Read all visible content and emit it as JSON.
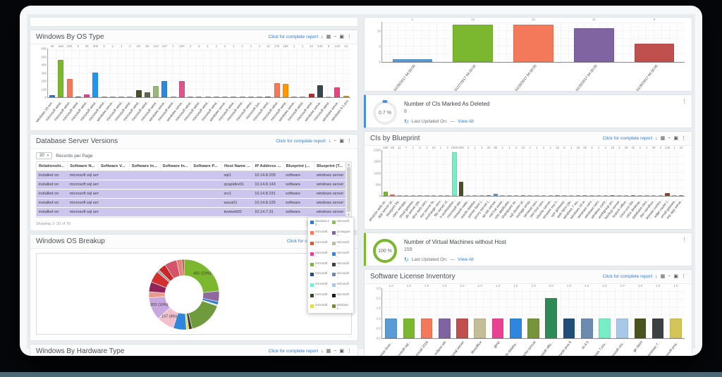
{
  "icons": {
    "download": "↓",
    "print": "▦",
    "minimize": "−",
    "popout": "▣",
    "kebab": "⋮",
    "refresh": "↻",
    "caret": "▾",
    "up": "▲",
    "down": "▼",
    "prev": "‹",
    "next": "›"
  },
  "labels": {
    "report_link": "Click for complete report",
    "records_per_page": "Records per Page",
    "last_updated": "Last Updated On:",
    "dash": "—",
    "view_all": "View All"
  },
  "colors": {
    "accent_link": "#2a7de1",
    "row_highlight": "#ccc5ee",
    "bottom_strip": "#4b6a76"
  },
  "panels": {
    "os_type": {
      "title": "Windows By OS Type"
    },
    "db_versions": {
      "title": "Database Server Versions"
    },
    "os_breakup": {
      "title": "Windows OS Breakup"
    },
    "hardware": {
      "title": "Windows By Hardware Type"
    },
    "blueprint": {
      "title": "CIs by Blueprint"
    },
    "license": {
      "title": "Software License Inventory"
    }
  },
  "widgets": {
    "deleted_cis": {
      "title": "Number of CIs Marked As Deleted",
      "value": "8",
      "gauge": "0.7 %",
      "accent": "#4a90d9"
    },
    "vm_no_host": {
      "title": "Number of Virtual Machines without Host",
      "value": "159",
      "gauge": "100 %",
      "accent": "#7cb82f"
    }
  },
  "table": {
    "records_per_page": "20",
    "headers": [
      "Relationshi...",
      "Software N...",
      "Software V...",
      "Software In...",
      "Software In...",
      "Software P...",
      "Host Name ...",
      "IP Address ...",
      "Blueprint (...",
      "Blueprint (T..."
    ],
    "rows": [
      [
        "installed on",
        "microsoft sql serve...",
        "",
        "",
        "",
        "",
        "sql1",
        "10.14.8.205",
        "software",
        "windows server"
      ],
      [
        "installed on",
        "microsoft sql serve...",
        "",
        "",
        "",
        "",
        "qcapidev01",
        "10.14.8.143",
        "software",
        "windows server"
      ],
      [
        "installed on",
        "microsoft sql serve...",
        "",
        "",
        "",
        "",
        "srv1",
        "10.14.8.231",
        "software",
        "windows server"
      ],
      [
        "installed on",
        "microsoft sql serve...",
        "",
        "",
        "",
        "",
        "wsus01",
        "10.14.8.225",
        "software",
        "windows server"
      ],
      [
        "installed on",
        "microsoft sql serve...",
        "",
        "",
        "",
        "",
        "testweb02",
        "10.14.7.31",
        "software",
        "windows server"
      ]
    ],
    "showing": "Showing 1- 20 of 70",
    "pages": [
      "1",
      "2",
      "3",
      "4"
    ],
    "active_page": "1"
  },
  "legend_overlay": {
    "items": [
      {
        "color": "#2d7dd2",
        "label": "windows 10..."
      },
      {
        "color": "#8bc34a",
        "label": "microsoft ..."
      },
      {
        "color": "#f4795b",
        "label": "microsoft ..."
      },
      {
        "color": "#8064a2",
        "label": "(unsupport..."
      },
      {
        "color": "#e05a2b",
        "label": "microsoft ..."
      },
      {
        "color": "#c4bd97",
        "label": "microsoft ..."
      },
      {
        "color": "#e84393",
        "label": "microsoft ..."
      },
      {
        "color": "#2e86de",
        "label": "microsoft ..."
      },
      {
        "color": "#7cb82f",
        "label": "microsoft ..."
      },
      {
        "color": "#3c4043",
        "label": "microsoft ..."
      },
      {
        "color": "#1f4e79",
        "label": "microsoft ..."
      },
      {
        "color": "#6b8cae",
        "label": "microsoft ..."
      },
      {
        "color": "#76eec6",
        "label": "microsoft ..."
      },
      {
        "color": "#a8c8e8",
        "label": "microsoft ..."
      },
      {
        "color": "#2d4a22",
        "label": "microsoft ..."
      },
      {
        "color": "#1a1a1a",
        "label": "microsoft ..."
      },
      {
        "color": "#e6d94e",
        "label": "microsoft ..."
      },
      {
        "color": "#7a8b2f",
        "label": "windows s..."
      }
    ]
  },
  "chart_data": [
    {
      "type": "bar",
      "title": "Windows By OS Type",
      "ylim": [
        0,
        600
      ],
      "yticks": [
        0,
        100,
        200,
        300,
        400,
        500,
        600
      ],
      "fmt": 0,
      "values": [
        30,
        460,
        230,
        8,
        35,
        305,
        5,
        1,
        1,
        2,
        84,
        60,
        140,
        197,
        1,
        200,
        2,
        2,
        1,
        1,
        2,
        1,
        2,
        1,
        2,
        12,
        175,
        168,
        1,
        1,
        42,
        145,
        8,
        120,
        14
      ],
      "colors": [
        "#2d7dd2",
        "#7cb82f",
        "#f4795b",
        "#c0504d",
        "#e84393",
        "#2196f3",
        "#b0b0b0",
        "#b0b0b0",
        "#b0b0b0",
        "#b0b0b0",
        "#4a4f2a",
        "#5d6b4a",
        "#9ab87a",
        "#2e86de",
        "#b0b0b0",
        "#e0548c",
        "#b0b0b0",
        "#b0b0b0",
        "#b0b0b0",
        "#b0b0b0",
        "#b0b0b0",
        "#b0b0b0",
        "#b0b0b0",
        "#b0b0b0",
        "#b0b0b0",
        "#9b59b6",
        "#f4795b",
        "#ff9800",
        "#b0b0b0",
        "#b0b0b0",
        "#c0282d",
        "#37474f",
        "#e6e24a",
        "#e0487e",
        "#c9a227"
      ],
      "categories": [
        "windows 10 ent...",
        "microsoft wind...",
        "microsoft wind...",
        "microsoft wind...",
        "microsoft wind...",
        "microsoft wind...",
        "microsoft wind...",
        "windows serve...",
        "microsoft wind...",
        "microsoft wind...",
        "microsoft wind...",
        "microsoft wind...",
        "microsoft wind...",
        "windows serve...",
        "microsoft wind...",
        "windows serve...",
        "microsoft wind...",
        "microsoft wind...",
        "microsoft wind...",
        "microsoft wind...",
        "windows serve...",
        "microsoft wind...",
        "microsoft wind...",
        "microsoft wind...",
        "microsoft (un...",
        "microsoft wind...",
        "microsoft wind...",
        "microsoft wind...",
        "windows serve...",
        "microsoft wind...",
        "microsoft wind...",
        "windows serve...",
        "microsoft wind...",
        "windows serve...",
        "windows 8.1 pro"
      ]
    },
    {
      "type": "bar",
      "title": "",
      "ylim": [
        0,
        13
      ],
      "yticks": [
        0,
        5,
        10
      ],
      "fmt": 0,
      "values": [
        1,
        12,
        12,
        11,
        6
      ],
      "colors": [
        "#5b9bd5",
        "#7cb82f",
        "#f4795b",
        "#8064a2",
        "#c0504d"
      ],
      "categories": [
        "01/26/2017 04:30:00",
        "01/27/2017 04:30:00",
        "01/28/2017 04:30:00",
        "01/29/2017 04:30:00",
        "01/30/2017 04:30:00"
      ]
    },
    {
      "type": "bar",
      "title": "CIs by Blueprint",
      "ylim": [
        0,
        2000
      ],
      "yticks": [
        0,
        500,
        1000,
        1500,
        2000
      ],
      "fmt": 0,
      "values": [
        180,
        60,
        11,
        7,
        1,
        5,
        2,
        10,
        1,
        3,
        1900,
        605,
        3,
        1,
        3,
        26,
        80,
        1,
        1,
        3,
        10,
        4,
        1,
        2,
        1,
        32,
        5,
        1,
        40,
        25,
        3,
        1,
        4,
        15,
        3,
        28,
        42,
        3,
        1,
        30,
        3,
        135,
        1,
        22
      ],
      "colors": [
        "#7cb82f",
        "#f4795b",
        "#c9cccf",
        "#c9cccf",
        "#c9cccf",
        "#c9cccf",
        "#c9cccf",
        "#c9cccf",
        "#c9cccf",
        "#c9cccf",
        "#76eec6",
        "#4a4f2a",
        "#c9cccf",
        "#c9cccf",
        "#c9cccf",
        "#5b9bd5",
        "#5b9bd5",
        "#c9cccf",
        "#c9cccf",
        "#c9cccf",
        "#8aa8c8",
        "#c9cccf",
        "#c9cccf",
        "#c9cccf",
        "#c9cccf",
        "#8aa8c8",
        "#c9cccf",
        "#c9cccf",
        "#e8a0b4",
        "#e8a0b4",
        "#c9cccf",
        "#c9cccf",
        "#c9cccf",
        "#f4795b",
        "#c9cccf",
        "#c9cccf",
        "#3cb39a",
        "#c9cccf",
        "#c9cccf",
        "#d6d08a",
        "#c9cccf",
        "#8b4a2f",
        "#c9cccf",
        "#f4795b"
      ],
      "categories": [
        "amazon web se...",
        "app server (d...",
        "blueprint for...",
        "citrix xenapp...",
        "cloud gatewa...",
        "db server (de...",
        "dmz web serv...",
        "esx server fa...",
        "exchange serv...",
        "file server cl...",
        "it workstation...",
        "microsoft win...",
        "network switc...",
        "oracle databa...",
        "printer farm (...",
        "proxy server (...",
        "qa lab server...",
        "red hat enter...",
        "sap applicatio...",
        "sharepoint se...",
        "sql cluster (d...",
        "storage array...",
        "terminal serv...",
        "test bed serv...",
        "ubuntu server...",
        "vmware esx h...",
        "vpn gateway...",
        "web farm (de...",
        "windows 7 wo...",
        "windows 10 w...",
        "windows serv...",
        "windows serv...",
        "wireless contr...",
        "workgroup pri...",
        "backup server...",
        "branch office...",
        "cisco ucs bla...",
        "citrix desktop...",
        "database clus...",
        "dev sandbox...",
        "domain contro...",
        "edge router (...",
        "email gatewa...",
        "erp app serve..."
      ]
    },
    {
      "type": "bar",
      "title": "Software License Inventory",
      "ylim": [
        0,
        2.5
      ],
      "yticks": [
        0,
        0.5,
        1,
        1.5,
        2,
        2.5
      ],
      "fmt": 1,
      "values": [
        1,
        1,
        1,
        1,
        1,
        1,
        1,
        1,
        1,
        2,
        1,
        1,
        1,
        1,
        1,
        1,
        1
      ],
      "colors": [
        "#5b9bd5",
        "#7cb82f",
        "#f4795b",
        "#8064a2",
        "#c0504d",
        "#c4bd97",
        "#e84393",
        "#2e86de",
        "#77933c",
        "#2e8b57",
        "#1f4e79",
        "#6b8cae",
        "#76eec6",
        "#a8c8e8",
        "#4a5320",
        "#3c4043",
        "#d4c55a"
      ],
      "categories": [
        "hyperion licen...",
        "microsoft sql...",
        "autocad 2016",
        "eclipse ide",
        "mysql server",
        "libreoffice",
        "gimp",
        "oracle databa...",
        "apache tomcat",
        "microsoft offic...",
        "oracle java 8",
        "iis 8.5",
        "windows 7 pro...",
        "microsoft visi...",
        "git client",
        "ms windows 7...",
        "microsoft proj..."
      ]
    },
    {
      "type": "donut",
      "title": "Windows OS Breakup",
      "slices": [
        {
          "value": 455,
          "color": "#7cb82f",
          "label": "455 (23%)"
        },
        {
          "value": 95,
          "color": "#8e6a9e"
        },
        {
          "value": 28,
          "color": "#2d7dd2"
        },
        {
          "value": 12,
          "color": "#e2e2e2"
        },
        {
          "value": 310,
          "color": "#6f9b3c"
        },
        {
          "value": 30,
          "color": "#3a3a3a"
        },
        {
          "value": 22,
          "color": "#e6d94e"
        },
        {
          "value": 118,
          "color": "#2e86de"
        },
        {
          "value": 157,
          "color": "#f0c0cc",
          "label": "157 (8%)"
        },
        {
          "value": 203,
          "color": "#c9a8e0",
          "label": "203 (10%)"
        },
        {
          "value": 55,
          "color": "#e99a8a"
        },
        {
          "value": 88,
          "color": "#8e2458"
        },
        {
          "value": 105,
          "color": "#d32f2f"
        },
        {
          "value": 22,
          "color": "#9e9e9e"
        },
        {
          "value": 70,
          "color": "#c62828"
        },
        {
          "value": 110,
          "color": "#d4556a"
        },
        {
          "value": 48,
          "color": "#e98073"
        },
        {
          "value": 18,
          "color": "#b04040"
        }
      ]
    }
  ]
}
